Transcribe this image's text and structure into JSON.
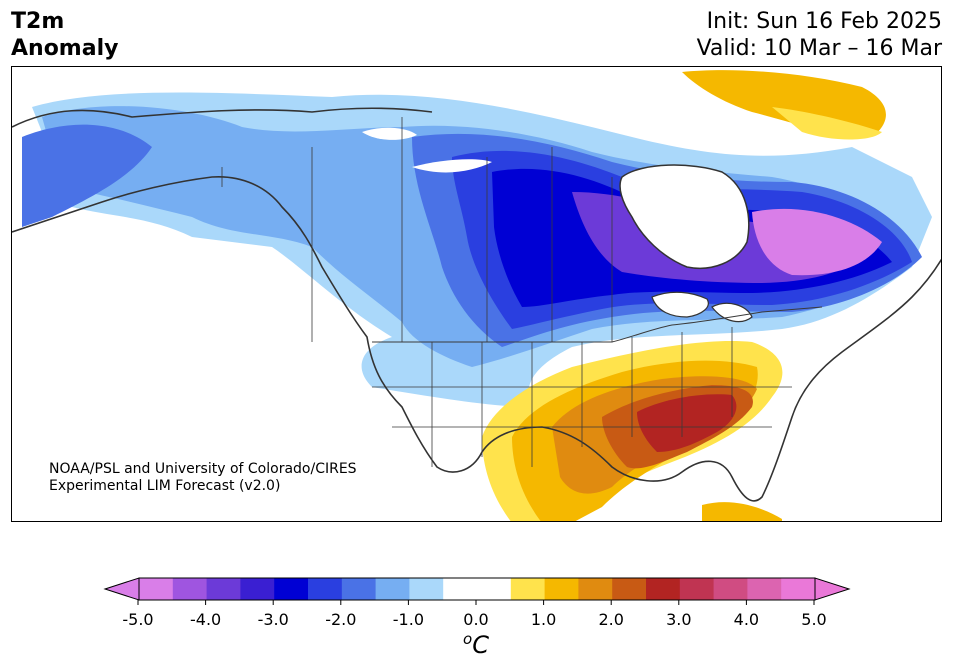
{
  "title": {
    "left_line1": "T2m",
    "left_line2": "Anomaly",
    "init": "Init: Sun 16 Feb 2025",
    "valid": "Valid: 10 Mar – 16 Mar"
  },
  "credit": {
    "line1": "NOAA/PSL and University of Colorado/CIRES",
    "line2": "Experimental LIM Forecast (v2.0)"
  },
  "colorbar": {
    "unit_base": "C",
    "unit_sup": "o",
    "tick_labels": [
      "-5.0",
      "-4.0",
      "-3.0",
      "-2.0",
      "-1.0",
      "0.0",
      "1.0",
      "2.0",
      "3.0",
      "4.0",
      "5.0"
    ],
    "colors": [
      "#d97ee8",
      "#9f55e0",
      "#6c3ad8",
      "#3a1fd2",
      "#0000d4",
      "#2a3fe0",
      "#4a72e6",
      "#76aef2",
      "#aad8fa",
      "#ffffff",
      "#ffffff",
      "#ffe34c",
      "#f5b800",
      "#e08b10",
      "#c85a14",
      "#b22422",
      "#c03452",
      "#d04c82",
      "#dc64b0",
      "#ea78d8"
    ],
    "under_color": "#d97ee8",
    "over_color": "#ea78d8"
  },
  "map_colors": {
    "land": "#ffffff",
    "lake": "#ffffff",
    "border": "#3a3a3a",
    "coast": "#333333"
  }
}
